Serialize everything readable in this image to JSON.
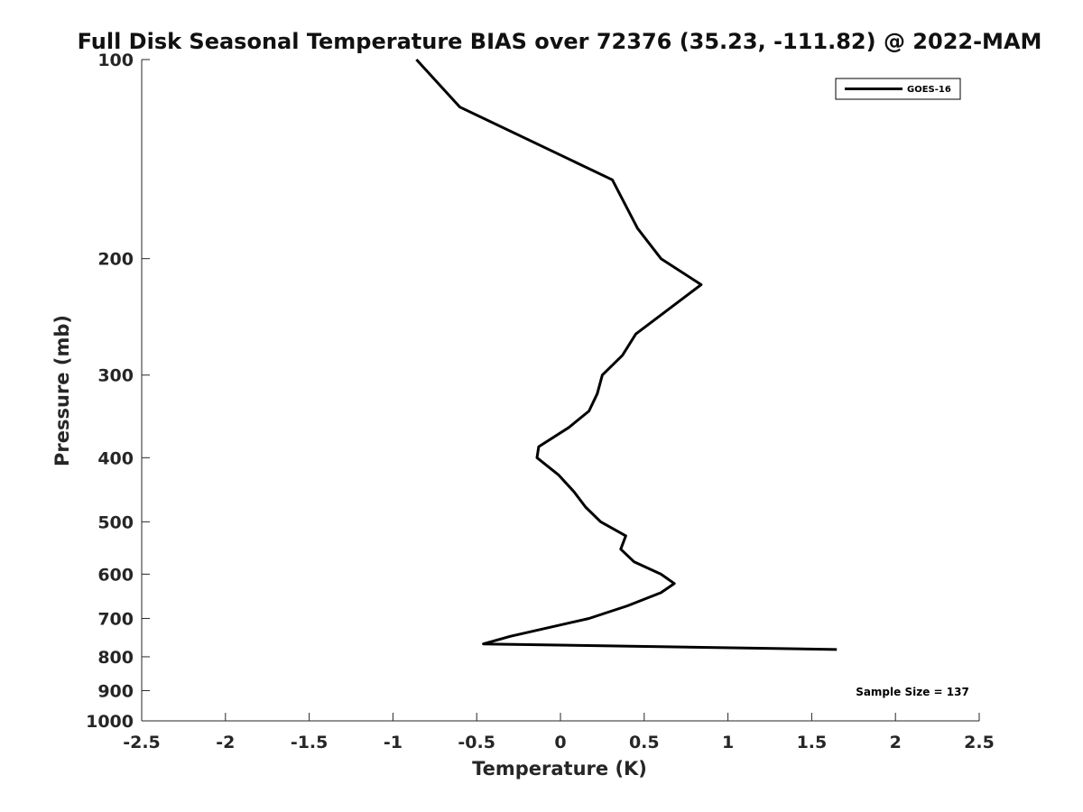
{
  "chart_data": {
    "type": "line",
    "title": "Full Disk Seasonal Temperature BIAS over 72376 (35.23, -111.82) @ 2022-MAM",
    "xlabel": "Temperature (K)",
    "ylabel": "Pressure (mb)",
    "xlim": [
      -2.5,
      2.5
    ],
    "ylim": [
      1000,
      100
    ],
    "yscale": "log",
    "y_reversed": true,
    "grid": false,
    "legend_position": "top-right",
    "x_ticks": [
      -2.5,
      -2,
      -1.5,
      -1,
      -0.5,
      0,
      0.5,
      1,
      1.5,
      2,
      2.5
    ],
    "x_tick_labels": [
      "-2.5",
      "-2",
      "-1.5",
      "-1",
      "-0.5",
      "0",
      "0.5",
      "1",
      "1.5",
      "2",
      "2.5"
    ],
    "y_ticks": [
      100,
      200,
      300,
      400,
      500,
      600,
      700,
      800,
      900,
      1000
    ],
    "y_tick_labels": [
      "100",
      "200",
      "300",
      "400",
      "500",
      "600",
      "700",
      "800",
      "900",
      "1000"
    ],
    "series": [
      {
        "name": "GOES-16",
        "color": "#000000",
        "points": [
          {
            "x": -0.86,
            "y": 100
          },
          {
            "x": -0.6,
            "y": 118
          },
          {
            "x": 0.31,
            "y": 152
          },
          {
            "x": 0.46,
            "y": 180
          },
          {
            "x": 0.6,
            "y": 200
          },
          {
            "x": 0.84,
            "y": 219
          },
          {
            "x": 0.45,
            "y": 260
          },
          {
            "x": 0.37,
            "y": 280
          },
          {
            "x": 0.25,
            "y": 300
          },
          {
            "x": 0.22,
            "y": 320
          },
          {
            "x": 0.17,
            "y": 340
          },
          {
            "x": 0.05,
            "y": 360
          },
          {
            "x": -0.13,
            "y": 385
          },
          {
            "x": -0.14,
            "y": 400
          },
          {
            "x": -0.01,
            "y": 425
          },
          {
            "x": 0.08,
            "y": 450
          },
          {
            "x": 0.15,
            "y": 475
          },
          {
            "x": 0.24,
            "y": 500
          },
          {
            "x": 0.39,
            "y": 525
          },
          {
            "x": 0.36,
            "y": 550
          },
          {
            "x": 0.44,
            "y": 575
          },
          {
            "x": 0.6,
            "y": 600
          },
          {
            "x": 0.68,
            "y": 620
          },
          {
            "x": 0.6,
            "y": 640
          },
          {
            "x": 0.4,
            "y": 670
          },
          {
            "x": 0.17,
            "y": 700
          },
          {
            "x": -0.3,
            "y": 745
          },
          {
            "x": -0.46,
            "y": 765
          },
          {
            "x": 1.65,
            "y": 780
          }
        ]
      }
    ],
    "annotations": [
      {
        "text": "Sample Size = 137",
        "position": "bottom-right"
      }
    ]
  }
}
